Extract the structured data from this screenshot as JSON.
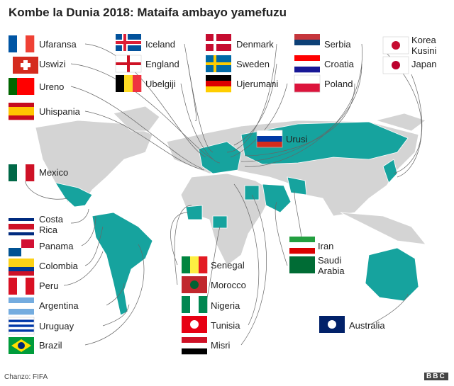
{
  "title": "Kombe la Dunia 2018: Mataifa ambayo yamefuzu",
  "countries": [
    {
      "name": "Ufaransa"
    },
    {
      "name": "Uswizi"
    },
    {
      "name": "Ureno"
    },
    {
      "name": "Uhispania"
    },
    {
      "name": "Mexico"
    },
    {
      "name": "Costa Rica"
    },
    {
      "name": "Panama"
    },
    {
      "name": "Colombia"
    },
    {
      "name": "Peru"
    },
    {
      "name": "Argentina"
    },
    {
      "name": "Uruguay"
    },
    {
      "name": "Brazil"
    },
    {
      "name": "Iceland"
    },
    {
      "name": "England"
    },
    {
      "name": "Ubelgiji"
    },
    {
      "name": "Denmark"
    },
    {
      "name": "Sweden"
    },
    {
      "name": "Ujerumani"
    },
    {
      "name": "Serbia"
    },
    {
      "name": "Croatia"
    },
    {
      "name": "Poland"
    },
    {
      "name": "Korea Kusini"
    },
    {
      "name": "Japan"
    },
    {
      "name": "Urusi"
    },
    {
      "name": "Iran"
    },
    {
      "name": "Saudi Arabia"
    },
    {
      "name": "Senegal"
    },
    {
      "name": "Morocco"
    },
    {
      "name": "Nigeria"
    },
    {
      "name": "Tunisia"
    },
    {
      "name": "Misri"
    },
    {
      "name": "Australia"
    }
  ],
  "source": "Chanzo: FIFA",
  "logo": "BBC"
}
